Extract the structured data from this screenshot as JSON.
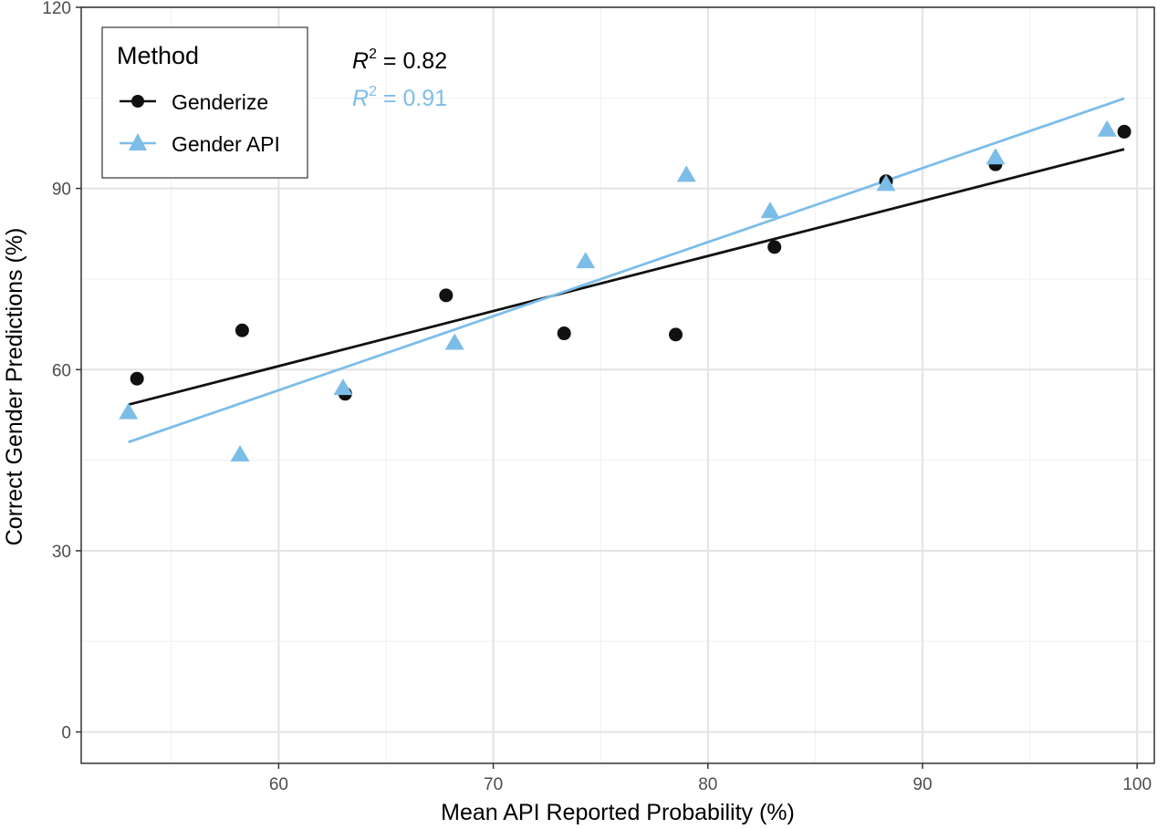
{
  "chart_data": {
    "type": "scatter",
    "xlabel": "Mean API Reported Probability (%)",
    "ylabel": "Correct Gender Predictions (%)",
    "xlim": [
      50.8,
      100.8
    ],
    "ylim": [
      -5.2,
      120.0
    ],
    "x_ticks": [
      60,
      70,
      80,
      90,
      100
    ],
    "y_ticks": [
      0,
      30,
      60,
      90,
      120
    ],
    "grid": true,
    "legend": {
      "title": "Method",
      "placement": "top-left",
      "entries": [
        {
          "label": "Genderize",
          "marker": "circle",
          "color": "#000000"
        },
        {
          "label": "Gender API",
          "marker": "triangle",
          "color": "#7cbde8"
        }
      ]
    },
    "series": [
      {
        "name": "Genderize",
        "color": "#111111",
        "marker": "circle",
        "points": [
          {
            "x": 53.4,
            "y": 58.5
          },
          {
            "x": 58.3,
            "y": 66.5
          },
          {
            "x": 63.1,
            "y": 56.0
          },
          {
            "x": 67.8,
            "y": 72.3
          },
          {
            "x": 73.3,
            "y": 66.0
          },
          {
            "x": 78.5,
            "y": 65.8
          },
          {
            "x": 83.1,
            "y": 80.3
          },
          {
            "x": 88.3,
            "y": 91.2
          },
          {
            "x": 93.4,
            "y": 94.0
          },
          {
            "x": 99.4,
            "y": 99.4
          }
        ],
        "fit": {
          "x": [
            53.0,
            99.4
          ],
          "y": [
            54.2,
            96.5
          ]
        },
        "r2_label": {
          "base": "R",
          "sup": "2",
          "value": " = 0.82"
        }
      },
      {
        "name": "Gender API",
        "color": "#7cbde8",
        "marker": "triangle",
        "points": [
          {
            "x": 53.0,
            "y": 53.0
          },
          {
            "x": 58.2,
            "y": 46.0
          },
          {
            "x": 63.0,
            "y": 57.0
          },
          {
            "x": 68.2,
            "y": 64.5
          },
          {
            "x": 74.3,
            "y": 78.0
          },
          {
            "x": 79.0,
            "y": 92.3
          },
          {
            "x": 82.9,
            "y": 86.3
          },
          {
            "x": 88.3,
            "y": 90.8
          },
          {
            "x": 93.4,
            "y": 95.2
          },
          {
            "x": 98.6,
            "y": 99.8
          }
        ],
        "fit": {
          "x": [
            53.0,
            99.4
          ],
          "y": [
            48.0,
            104.9
          ]
        },
        "r2_label": {
          "base": "R",
          "sup": "2",
          "value": " = 0.91"
        }
      }
    ]
  }
}
